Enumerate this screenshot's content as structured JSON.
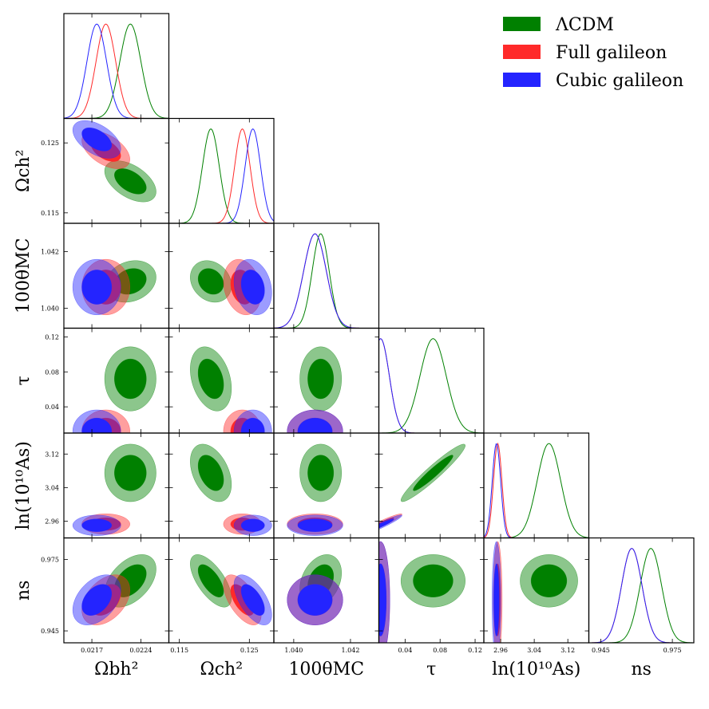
{
  "chart_data": {
    "type": "triangle",
    "parameters": [
      {
        "key": "omb",
        "label": "Ωbh²",
        "range": [
          0.0213,
          0.0228
        ],
        "ticks": [
          0.0217,
          0.0224
        ],
        "tick_labels": [
          "0.0217",
          "0.0224"
        ],
        "latex": "Ω_b h^2"
      },
      {
        "key": "omc",
        "label": "Ωch²",
        "range": [
          0.1135,
          0.1285
        ],
        "ticks": [
          0.115,
          0.125
        ],
        "tick_labels": [
          "0.115",
          "0.125"
        ],
        "latex": "Ω_c h^2"
      },
      {
        "key": "theta",
        "label": "100θMC",
        "range": [
          1.0393,
          1.043
        ],
        "ticks": [
          1.04,
          1.042
        ],
        "tick_labels": [
          "1.040",
          "1.042"
        ],
        "latex": "100θ_MC"
      },
      {
        "key": "tau",
        "label": "τ",
        "range": [
          0.01,
          0.13
        ],
        "ticks": [
          0.04,
          0.08,
          0.12
        ],
        "tick_labels": [
          "0.04",
          "0.08",
          "0.12"
        ],
        "latex": "τ"
      },
      {
        "key": "lnA",
        "label": "ln(10¹⁰As)",
        "range": [
          2.92,
          3.17
        ],
        "ticks": [
          2.96,
          3.04,
          3.12
        ],
        "tick_labels": [
          "2.96",
          "3.04",
          "3.12"
        ],
        "latex": "ln(10^10 A_s)"
      },
      {
        "key": "ns",
        "label": "ns",
        "range": [
          0.94,
          0.984
        ],
        "ticks": [
          0.945,
          0.975
        ],
        "tick_labels": [
          "0.945",
          "0.975"
        ],
        "latex": "n_s"
      }
    ],
    "legend": [
      {
        "name": "ΛCDM",
        "color": "#008000"
      },
      {
        "name": "Full galileon",
        "color": "#ff2a2a"
      },
      {
        "name": "Cubic galileon",
        "color": "#2424ff"
      }
    ],
    "series": [
      {
        "name": "ΛCDM",
        "color": "#008000",
        "mean": {
          "omb": 0.02225,
          "omc": 0.1195,
          "theta": 1.04095,
          "tau": 0.072,
          "lnA": 3.075,
          "ns": 0.966
        },
        "sigma": {
          "omb": 0.00015,
          "omc": 0.0012,
          "theta": 0.0003,
          "tau": 0.015,
          "lnA": 0.028,
          "ns": 0.0045
        },
        "corr": {
          "omb-omc": -0.5,
          "omb-theta": 0.2,
          "omb-ns": 0.45,
          "omc-theta": -0.2,
          "omc-tau": -0.3,
          "omc-lnA": -0.4,
          "omc-ns": -0.65,
          "tau-lnA": 0.95,
          "theta-ns": 0.3
        }
      },
      {
        "name": "Full galileon",
        "color": "#ff2a2a",
        "mean": {
          "omb": 0.0219,
          "omc": 0.124,
          "theta": 1.04075,
          "tau": 0.012,
          "lnA": 2.953,
          "ns": 0.958
        },
        "sigma": {
          "omb": 0.00014,
          "omc": 0.0011,
          "theta": 0.0004,
          "tau": 0.01,
          "lnA": 0.01,
          "ns": 0.0043
        },
        "corr": {
          "omb-omc": -0.5,
          "omb-ns": 0.4,
          "omc-ns": -0.6,
          "tau-lnA": 0.95,
          "omc-theta": -0.2
        }
      },
      {
        "name": "Cubic galileon",
        "color": "#2424ff",
        "mean": {
          "omb": 0.02177,
          "omc": 0.1255,
          "theta": 1.04075,
          "tau": 0.012,
          "lnA": 2.95,
          "ns": 0.958
        },
        "sigma": {
          "omb": 0.00014,
          "omc": 0.0011,
          "theta": 0.0004,
          "tau": 0.01,
          "lnA": 0.01,
          "ns": 0.0043
        },
        "corr": {
          "omb-omc": -0.5,
          "omb-ns": 0.4,
          "omc-ns": -0.6,
          "tau-lnA": 0.95,
          "omc-theta": -0.2
        }
      }
    ],
    "levels": [
      "68%",
      "95%"
    ],
    "grid": false
  }
}
